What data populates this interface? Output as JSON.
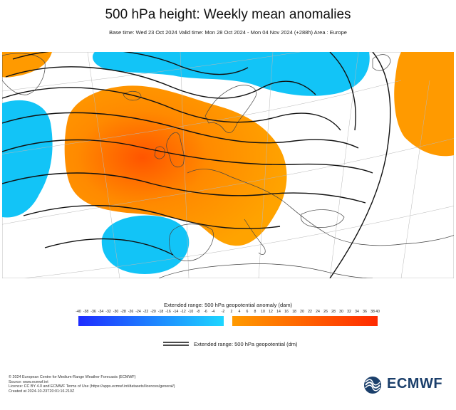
{
  "title": "500 hPa height: Weekly mean anomalies",
  "subtitle": "Base time: Wed 23 Oct 2024 Valid time: Mon 28 Oct 2024 - Mon 04 Nov 2024 (+288h) Area : Europe",
  "legend": {
    "anomaly_title": "Extended range: 500 hPa geopotential anomaly (dam)",
    "negative_ticks": [
      "-40",
      "-38",
      "-36",
      "-34",
      "-32",
      "-30",
      "-28",
      "-26",
      "-24",
      "-22",
      "-20",
      "-18",
      "-16",
      "-14",
      "-12",
      "-10",
      "-8",
      "-6",
      "-4",
      "-2"
    ],
    "positive_ticks": [
      "2",
      "4",
      "6",
      "8",
      "10",
      "12",
      "14",
      "16",
      "18",
      "20",
      "22",
      "24",
      "26",
      "28",
      "30",
      "32",
      "34",
      "36",
      "38",
      "40"
    ],
    "geopotential_label": "Extended range: 500 hPa geopotential (dm)"
  },
  "colors": {
    "negative_start": "#1e2cff",
    "negative_end": "#1ed6ff",
    "positive_start": "#ff9a00",
    "positive_end": "#ff2a00",
    "ocean_anomaly": "#10c6f8",
    "warm_anomaly": "#ff8c00"
  },
  "footer": {
    "line1": "© 2024 European Centre for Medium-Range Weather Forecasts (ECMWF)",
    "line2": "Source: www.ecmwf.int",
    "line3": "Licence: CC BY 4.0 and ECMWF Terms of Use (https://apps.ecmwf.int/datasets/licences/general/)",
    "line4": "Created at 2024-10-23T20:01:16.210Z"
  },
  "logo_text": "ECMWF"
}
